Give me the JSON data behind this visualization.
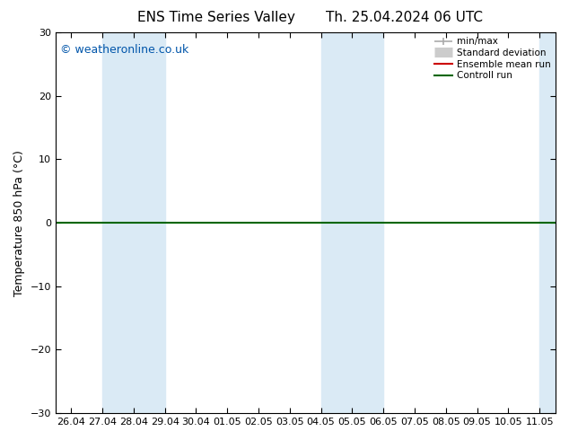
{
  "title_left": "ENS Time Series Valley",
  "title_right": "Th. 25.04.2024 06 UTC",
  "ylabel": "Temperature 850 hPa (°C)",
  "ylim": [
    -30,
    30
  ],
  "yticks": [
    -30,
    -20,
    -10,
    0,
    10,
    20,
    30
  ],
  "xtick_labels": [
    "26.04",
    "27.04",
    "28.04",
    "29.04",
    "30.04",
    "01.05",
    "02.05",
    "03.05",
    "04.05",
    "05.05",
    "06.05",
    "07.05",
    "08.05",
    "09.05",
    "10.05",
    "11.05"
  ],
  "shaded_bands": [
    {
      "xmin": 1,
      "xmax": 3,
      "color": "#daeaf5"
    },
    {
      "xmin": 8,
      "xmax": 10,
      "color": "#daeaf5"
    },
    {
      "xmin": 15,
      "xmax": 16,
      "color": "#daeaf5"
    }
  ],
  "hline_y": 0,
  "hline_color": "#006600",
  "hline_lw": 1.5,
  "copyright_text": "© weatheronline.co.uk",
  "copyright_color": "#0055aa",
  "copyright_fontsize": 9,
  "legend_items": [
    {
      "label": "min/max",
      "color": "#aaaaaa",
      "lw": 1.2
    },
    {
      "label": "Standard deviation",
      "color": "#cccccc",
      "lw": 8
    },
    {
      "label": "Ensemble mean run",
      "color": "#cc0000",
      "lw": 1.5
    },
    {
      "label": "Controll run",
      "color": "#006600",
      "lw": 1.5
    }
  ],
  "bg_color": "white",
  "plot_bg_color": "white",
  "title_fontsize": 11,
  "ylabel_fontsize": 9,
  "tick_fontsize": 8,
  "legend_fontsize": 7.5
}
